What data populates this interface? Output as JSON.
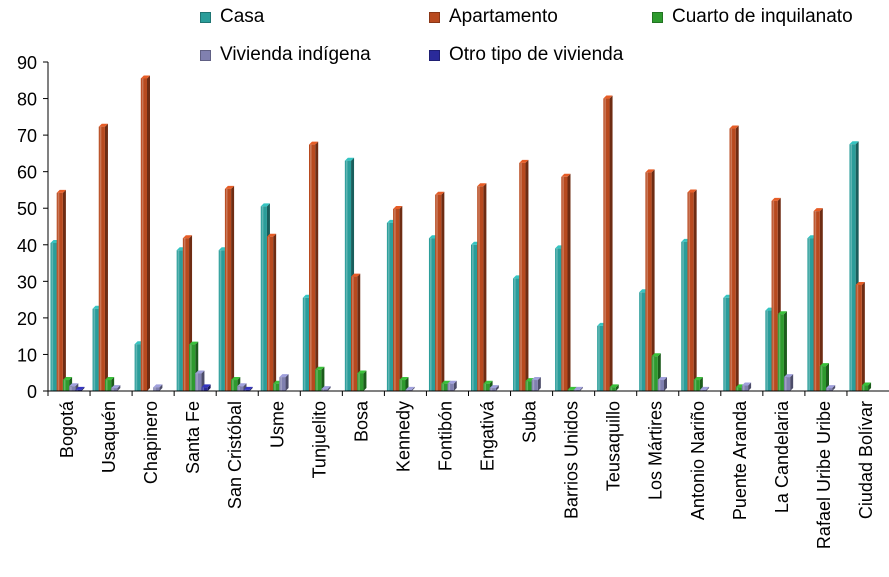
{
  "chart_data": {
    "type": "bar",
    "title": "",
    "xlabel": "",
    "ylabel": "",
    "ylim": [
      0,
      90
    ],
    "yticks": [
      0,
      10,
      20,
      30,
      40,
      50,
      60,
      70,
      80,
      90
    ],
    "grid": false,
    "legend_position": "top",
    "categories": [
      "Bogotá",
      "Usaquén",
      "Chapinero",
      "Santa Fe",
      "San Cristóbal",
      "Usme",
      "Tunjuelito",
      "Bosa",
      "Kennedy",
      "Fontibón",
      "Engativá",
      "Suba",
      "Barrios Unidos",
      "Teusaquillo",
      "Los Mártires",
      "Antonio Nariño",
      "Puente Aranda",
      "La Candelaria",
      "Rafael Uribe Uribe",
      "Ciudad Bolívar"
    ],
    "series": [
      {
        "name": "Casa",
        "color": "#2a9d9a",
        "values": [
          40.5,
          22.5,
          12.8,
          38.5,
          38.5,
          50.5,
          25.5,
          63.0,
          46.0,
          41.8,
          40.0,
          30.8,
          39.0,
          17.8,
          27.0,
          40.8,
          25.5,
          22.0,
          41.8,
          67.5
        ]
      },
      {
        "name": "Apartamento",
        "color": "#b84a1f",
        "values": [
          54.2,
          72.3,
          85.5,
          41.8,
          55.3,
          42.2,
          67.4,
          31.3,
          49.8,
          53.7,
          56.0,
          62.4,
          58.6,
          80.0,
          59.8,
          54.3,
          71.8,
          52.0,
          49.2,
          29.0
        ]
      },
      {
        "name": "Cuarto de inquilanato",
        "color": "#2e9a2e",
        "values": [
          3.0,
          3.0,
          0.0,
          12.7,
          3.0,
          2.0,
          5.8,
          4.8,
          3.0,
          2.0,
          2.0,
          2.7,
          0.3,
          1.0,
          9.5,
          3.0,
          1.0,
          21.0,
          6.8,
          1.5
        ]
      },
      {
        "name": "Vivienda indígena",
        "color": "#8080b0",
        "values": [
          1.3,
          0.8,
          1.0,
          4.8,
          1.3,
          3.8,
          0.5,
          0.0,
          0.3,
          2.0,
          0.8,
          3.0,
          0.3,
          0.0,
          3.0,
          0.3,
          1.5,
          3.8,
          0.8,
          0.0
        ]
      },
      {
        "name": "Otro tipo de vivienda",
        "color": "#2a2a9a",
        "values": [
          0.3,
          0.0,
          0.0,
          1.0,
          0.3,
          0.0,
          0.0,
          0.0,
          0.0,
          0.0,
          0.0,
          0.0,
          0.0,
          0.0,
          0.0,
          0.0,
          0.0,
          0.0,
          0.0,
          0.0
        ]
      }
    ]
  }
}
